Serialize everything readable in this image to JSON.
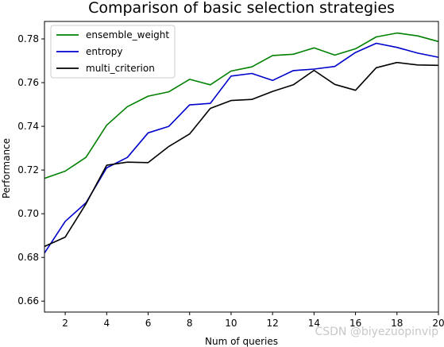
{
  "chart_data": {
    "type": "line",
    "title": "Comparison of basic selection strategies",
    "xlabel": "Num of queries",
    "ylabel": "Performance",
    "xlim": [
      1,
      20
    ],
    "ylim": [
      0.655,
      0.788
    ],
    "xticks": [
      2,
      4,
      6,
      8,
      10,
      12,
      14,
      16,
      18,
      20
    ],
    "yticks": [
      0.66,
      0.68,
      0.7,
      0.72,
      0.74,
      0.76,
      0.78
    ],
    "grid": false,
    "legend": "top-left",
    "x": [
      1,
      2,
      3,
      4,
      5,
      6,
      7,
      8,
      9,
      10,
      11,
      12,
      13,
      14,
      15,
      16,
      17,
      18,
      19,
      20
    ],
    "series": [
      {
        "name": "ensemble_weight",
        "color": "#008000",
        "values": [
          0.7162,
          0.7195,
          0.7258,
          0.7405,
          0.749,
          0.7538,
          0.7558,
          0.7615,
          0.759,
          0.7653,
          0.7672,
          0.7724,
          0.773,
          0.7759,
          0.7726,
          0.7755,
          0.7809,
          0.7827,
          0.7814,
          0.7788
        ]
      },
      {
        "name": "entropy",
        "color": "#0000cc",
        "values": [
          0.682,
          0.6965,
          0.705,
          0.721,
          0.7258,
          0.737,
          0.74,
          0.7498,
          0.7505,
          0.763,
          0.7642,
          0.761,
          0.7655,
          0.7662,
          0.7674,
          0.7738,
          0.778,
          0.7761,
          0.7735,
          0.7716
        ]
      },
      {
        "name": "multi_criterion",
        "color": "#000000",
        "values": [
          0.685,
          0.6893,
          0.7045,
          0.7222,
          0.7236,
          0.7234,
          0.7308,
          0.7365,
          0.7482,
          0.7518,
          0.7523,
          0.756,
          0.759,
          0.7656,
          0.7592,
          0.7565,
          0.7668,
          0.7692,
          0.7681,
          0.7679
        ]
      }
    ]
  },
  "watermark": "CSDN @biyezuopinvip"
}
